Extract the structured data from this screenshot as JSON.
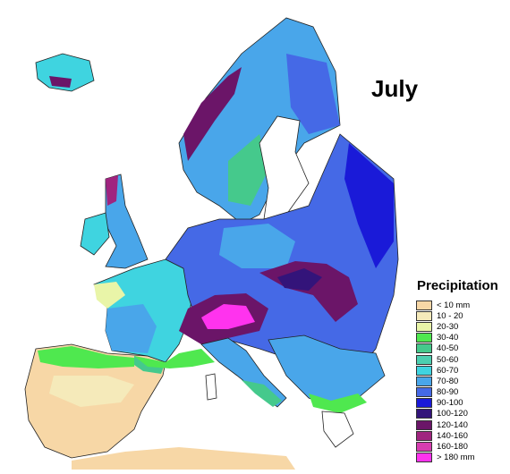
{
  "map": {
    "title": "July",
    "legend": {
      "title": "Precipitation",
      "classes": [
        {
          "label": "< 10 mm",
          "color": "#f7d7a6"
        },
        {
          "label": "10 - 20",
          "color": "#f5eaba"
        },
        {
          "label": "20-30",
          "color": "#e9f5a8"
        },
        {
          "label": "30-40",
          "color": "#4fe84f"
        },
        {
          "label": "40-50",
          "color": "#45c98c"
        },
        {
          "label": "50-60",
          "color": "#4ccfb0"
        },
        {
          "label": "60-70",
          "color": "#3fd4e0"
        },
        {
          "label": "70-80",
          "color": "#49a6ea"
        },
        {
          "label": "80-90",
          "color": "#4569e6"
        },
        {
          "label": "90-100",
          "color": "#1a1ad8"
        },
        {
          "label": "100-120",
          "color": "#33147a"
        },
        {
          "label": "120-140",
          "color": "#6b1568"
        },
        {
          "label": "140-160",
          "color": "#a0247f"
        },
        {
          "label": "160-180",
          "color": "#d63db0"
        },
        {
          "label": "> 180 mm",
          "color": "#ff33ee"
        }
      ]
    }
  }
}
